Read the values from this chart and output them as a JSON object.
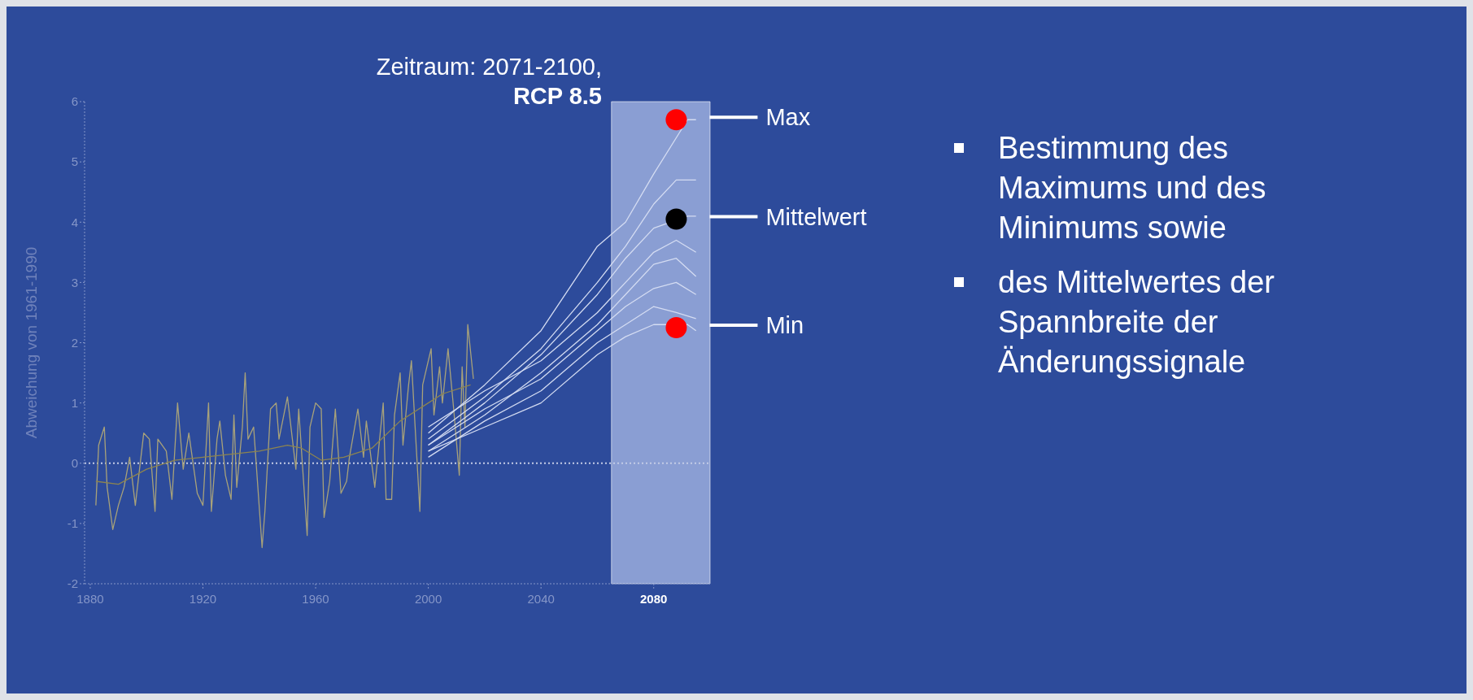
{
  "chart_data": {
    "type": "line",
    "title": "Zeitraum: 2071-2100,",
    "subtitle": "RCP 8.5",
    "ylabel": "Abweichung von 1961-1990",
    "xlim": [
      1878,
      2100
    ],
    "xticks": [
      1880,
      1920,
      1960,
      2000,
      2040,
      2080
    ],
    "ylim": [
      -2,
      6
    ],
    "yticks": [
      -2,
      -1,
      0,
      1,
      2,
      3,
      4,
      5,
      6
    ],
    "bands": [
      {
        "axis": "x",
        "from": 2065,
        "to": 2100,
        "color": "#a9b9e6"
      }
    ],
    "ref_lines": [
      {
        "axis": "y",
        "value": 0,
        "color": "#c4cce6",
        "line_style": "dotted"
      }
    ],
    "series": [
      {
        "color": "#a8a27a",
        "x": [
          1882,
          1883,
          1885,
          1886,
          1888,
          1890,
          1892,
          1894,
          1896,
          1899,
          1901,
          1903,
          1904,
          1907,
          1909,
          1911,
          1913,
          1915,
          1918,
          1920,
          1922,
          1923,
          1925,
          1926,
          1928,
          1930,
          1931,
          1932,
          1934,
          1935,
          1936,
          1938,
          1941,
          1942,
          1944,
          1946,
          1947,
          1950,
          1953,
          1954,
          1957,
          1958,
          1960,
          1962,
          1963,
          1965,
          1967,
          1969,
          1971,
          1972,
          1975,
          1977,
          1978,
          1981,
          1984,
          1985,
          1987,
          1988,
          1990,
          1991,
          1993,
          1994,
          1997,
          1998,
          2001,
          2002,
          2004,
          2005,
          2007,
          2009,
          2011,
          2012,
          2013,
          2014,
          2016
        ],
        "values": [
          -0.7,
          0.3,
          0.6,
          -0.4,
          -1.1,
          -0.7,
          -0.4,
          0.1,
          -0.7,
          0.5,
          0.4,
          -0.8,
          0.4,
          0.2,
          -0.6,
          1.0,
          -0.1,
          0.5,
          -0.5,
          -0.7,
          1.0,
          -0.8,
          0.4,
          0.7,
          -0.2,
          -0.6,
          0.8,
          -0.4,
          0.6,
          1.5,
          0.4,
          0.6,
          -1.4,
          -0.8,
          0.9,
          1.0,
          0.4,
          1.1,
          -0.1,
          0.9,
          -1.2,
          0.6,
          1.0,
          0.9,
          -0.9,
          -0.3,
          0.9,
          -0.5,
          -0.3,
          0.1,
          0.9,
          0.1,
          0.7,
          -0.4,
          1.0,
          -0.6,
          -0.6,
          0.8,
          1.5,
          0.3,
          1.3,
          1.7,
          -0.8,
          1.3,
          1.9,
          0.8,
          1.6,
          1.0,
          1.9,
          0.9,
          -0.2,
          1.6,
          0.6,
          2.3,
          1.4
        ]
      },
      {
        "color": "#8c8450",
        "x": [
          1882,
          1890,
          1900,
          1910,
          1920,
          1930,
          1940,
          1950,
          1955,
          1962,
          1970,
          1980,
          1990,
          2000,
          2005,
          2015
        ],
        "values": [
          -0.3,
          -0.35,
          -0.1,
          0.05,
          0.1,
          0.15,
          0.2,
          0.3,
          0.25,
          0.05,
          0.1,
          0.25,
          0.7,
          1.0,
          1.15,
          1.3
        ]
      },
      {
        "color": "#d4dcf2",
        "x": [
          2000,
          2020,
          2040,
          2060,
          2070,
          2080,
          2092,
          2095
        ],
        "values": [
          0.5,
          1.3,
          2.2,
          3.6,
          4.0,
          4.8,
          5.7,
          5.7
        ]
      },
      {
        "color": "#d4dcf2",
        "x": [
          2000,
          2020,
          2040,
          2060,
          2070,
          2080,
          2088,
          2095
        ],
        "values": [
          0.4,
          1.1,
          1.9,
          3.0,
          3.6,
          4.3,
          4.7,
          4.7
        ]
      },
      {
        "color": "#d4dcf2",
        "x": [
          2000,
          2020,
          2040,
          2060,
          2070,
          2080,
          2092,
          2095
        ],
        "values": [
          0.3,
          1.0,
          1.8,
          2.8,
          3.4,
          3.9,
          4.1,
          4.1
        ]
      },
      {
        "color": "#d4dcf2",
        "x": [
          2000,
          2020,
          2040,
          2060,
          2070,
          2080,
          2088,
          2095
        ],
        "values": [
          0.6,
          1.2,
          1.7,
          2.5,
          3.0,
          3.5,
          3.7,
          3.5
        ]
      },
      {
        "color": "#d4dcf2",
        "x": [
          2000,
          2020,
          2040,
          2060,
          2070,
          2080,
          2088,
          2095
        ],
        "values": [
          0.2,
          0.8,
          1.5,
          2.3,
          2.8,
          3.3,
          3.4,
          3.1
        ]
      },
      {
        "color": "#d4dcf2",
        "x": [
          2000,
          2020,
          2040,
          2060,
          2070,
          2080,
          2088,
          2095
        ],
        "values": [
          0.3,
          0.9,
          1.4,
          2.2,
          2.6,
          2.9,
          3.0,
          2.8
        ]
      },
      {
        "color": "#d4dcf2",
        "x": [
          2000,
          2020,
          2040,
          2060,
          2070,
          2080,
          2088,
          2095
        ],
        "values": [
          0.1,
          0.7,
          1.2,
          2.0,
          2.3,
          2.6,
          2.5,
          2.4
        ]
      },
      {
        "color": "#d4dcf2",
        "x": [
          2000,
          2020,
          2040,
          2060,
          2070,
          2080,
          2092,
          2095
        ],
        "values": [
          0.2,
          0.6,
          1.0,
          1.8,
          2.1,
          2.3,
          2.3,
          2.2
        ]
      },
      {
        "type": "scatter",
        "name": "Max",
        "color": "#ff0000",
        "x": [
          2088
        ],
        "values": [
          5.7
        ]
      },
      {
        "type": "scatter",
        "name": "Mittelwert",
        "color": "#000000",
        "x": [
          2088
        ],
        "values": [
          4.05
        ]
      },
      {
        "type": "scatter",
        "name": "Min",
        "color": "#ff0000",
        "x": [
          2088
        ],
        "values": [
          2.25
        ]
      }
    ],
    "annotations": [
      "Bestimmung des Maximums und des Minimums sowie",
      "des Mittelwertes der Spannbreite der Änderungssignale"
    ]
  }
}
